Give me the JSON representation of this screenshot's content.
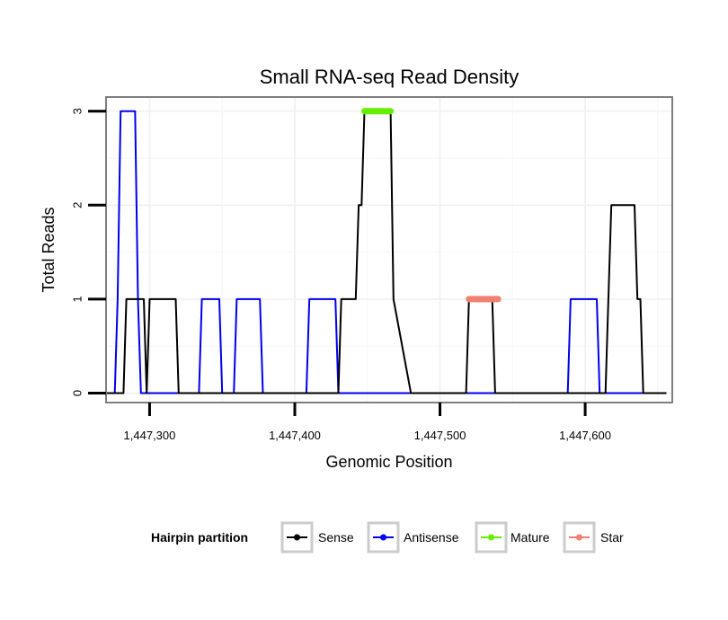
{
  "chart_data": {
    "type": "line",
    "title": "Small RNA-seq Read Density",
    "xlabel": "Genomic Position",
    "ylabel": "Total Reads",
    "xlim": [
      1447270,
      1447660
    ],
    "ylim": [
      -0.1,
      3.15
    ],
    "x_ticks": [
      1447300,
      1447400,
      1447500,
      1447600
    ],
    "x_tick_labels": [
      "1,447,300",
      "1,447,400",
      "1,447,500",
      "1,447,600"
    ],
    "y_ticks": [
      0,
      1,
      2,
      3
    ],
    "y_tick_labels": [
      "0",
      "1",
      "2",
      "3"
    ],
    "grid": true,
    "legend": {
      "title": "Hairpin partition",
      "position": "bottom",
      "entries": [
        "Sense",
        "Antisense",
        "Mature",
        "Star"
      ]
    },
    "series": [
      {
        "name": "Sense",
        "color": "#000000",
        "x": [
          1447268,
          1447282,
          1447284,
          1447296,
          1447298,
          1447300,
          1447302,
          1447318,
          1447320,
          1447330,
          1447340,
          1447350,
          1447360,
          1447370,
          1447380,
          1447390,
          1447400,
          1447410,
          1447420,
          1447430,
          1447432,
          1447442,
          1447444,
          1447446,
          1447448,
          1447466,
          1447468,
          1447480,
          1447500,
          1447518,
          1447520,
          1447536,
          1447538,
          1447560,
          1447580,
          1447600,
          1447614,
          1447616,
          1447618,
          1447634,
          1447636,
          1447638,
          1447640,
          1447656
        ],
        "y": [
          0,
          0,
          1,
          1,
          0,
          1,
          1,
          1,
          0,
          0,
          0,
          0,
          0,
          0,
          0,
          0,
          0,
          0,
          0,
          0,
          1,
          1,
          2,
          2,
          3,
          3,
          1,
          0,
          0,
          0,
          1,
          1,
          0,
          0,
          0,
          0,
          0,
          1,
          2,
          2,
          1,
          1,
          0,
          0
        ]
      },
      {
        "name": "Antisense",
        "color": "#0000ee",
        "x": [
          1447276,
          1447278,
          1447280,
          1447290,
          1447292,
          1447294,
          1447300,
          1447318,
          1447334,
          1447336,
          1447348,
          1447350,
          1447358,
          1447360,
          1447376,
          1447378,
          1447408,
          1447410,
          1447428,
          1447430,
          1447440,
          1447460,
          1447480,
          1447500,
          1447520,
          1447540,
          1447560,
          1447580,
          1447588,
          1447590,
          1447608,
          1447610,
          1447620,
          1447640
        ],
        "y": [
          0,
          1,
          3,
          3,
          1,
          0,
          0,
          0,
          0,
          1,
          1,
          0,
          0,
          1,
          1,
          0,
          0,
          1,
          1,
          0,
          0,
          0,
          0,
          0,
          0,
          0,
          0,
          0,
          0,
          1,
          1,
          0,
          0,
          0
        ]
      },
      {
        "name": "Mature",
        "color": "#66ee00",
        "x": [
          1447448,
          1447466
        ],
        "y": [
          3,
          3
        ]
      },
      {
        "name": "Star",
        "color": "#f08070",
        "x": [
          1447520,
          1447540
        ],
        "y": [
          1,
          1
        ]
      }
    ]
  }
}
